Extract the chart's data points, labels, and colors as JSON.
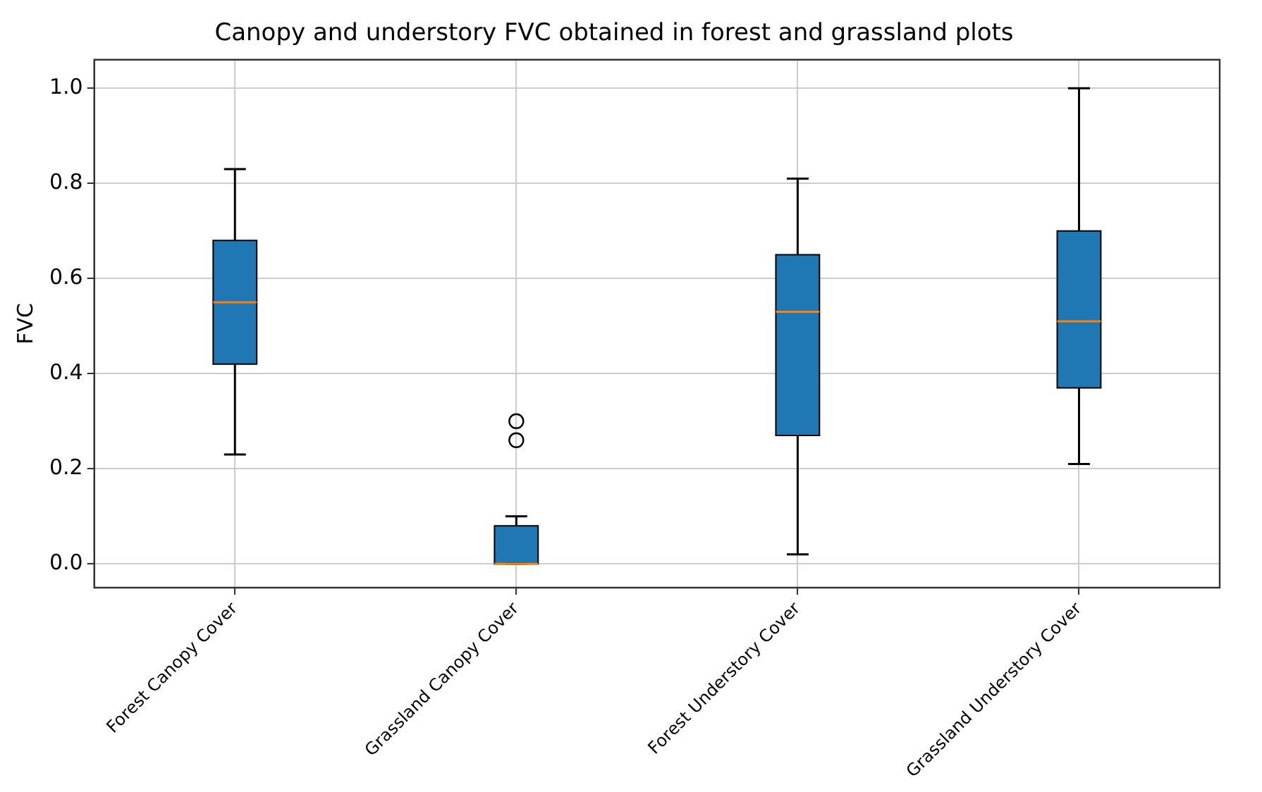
{
  "chart_data": {
    "type": "box",
    "title": "Canopy and understory FVC obtained in forest and grassland plots",
    "ylabel": "FVC",
    "categories": [
      "Forest Canopy Cover",
      "Grassland Canopy Cover",
      "Forest Understory Cover",
      "Grassland Understory Cover"
    ],
    "boxes": [
      {
        "low": 0.23,
        "q1": 0.42,
        "median": 0.55,
        "q3": 0.68,
        "high": 0.83
      },
      {
        "low": 0,
        "q1": 0,
        "median": 0,
        "q3": 0.08,
        "high": 0.1,
        "outliers": [
          0.26,
          0.3
        ]
      },
      {
        "low": 0.02,
        "q1": 0.27,
        "median": 0.53,
        "q3": 0.65,
        "high": 0.81
      },
      {
        "low": 0.21,
        "q1": 0.37,
        "median": 0.51,
        "q3": 0.7,
        "high": 1.0
      }
    ],
    "color": "#1f77b4",
    "ylim": [
      -0.05,
      1.06
    ],
    "yticks": [
      {
        "value": 0,
        "label": "0.0"
      },
      {
        "value": 0.2,
        "label": "0.2"
      },
      {
        "value": 0.4,
        "label": "0.4"
      },
      {
        "value": 0.6,
        "label": "0.6"
      },
      {
        "value": 0.8,
        "label": "0.8"
      },
      {
        "value": 1,
        "label": "1.0"
      }
    ],
    "grid": true
  }
}
